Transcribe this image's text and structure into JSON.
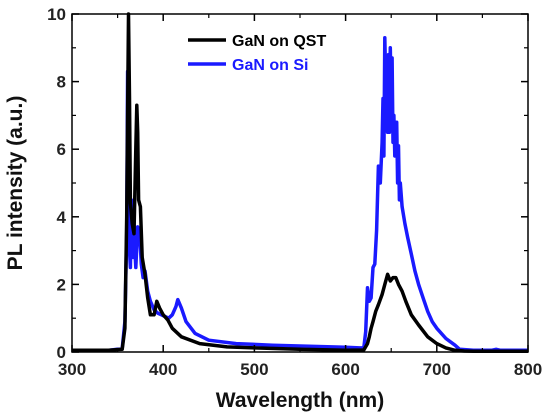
{
  "chart_data": {
    "type": "line",
    "xlabel": "Wavelength (nm)",
    "ylabel": "PL intensity (a.u.)",
    "xlim": [
      300,
      800
    ],
    "ylim": [
      0,
      10
    ],
    "xticks": [
      300,
      400,
      500,
      600,
      700,
      800
    ],
    "yticks": [
      0,
      2,
      4,
      6,
      8,
      10
    ],
    "grid": false,
    "legend_position": "top-center",
    "series": [
      {
        "name": "GaN on QST",
        "color": "#000000",
        "x": [
          300,
          340,
          355,
          358,
          360,
          362,
          363,
          364,
          366,
          368,
          370,
          371,
          372,
          373,
          375,
          377,
          380,
          383,
          386,
          390,
          393,
          396,
          400,
          405,
          410,
          420,
          440,
          470,
          500,
          550,
          600,
          620,
          624,
          626,
          628,
          630,
          633,
          636,
          640,
          643,
          646,
          649,
          652,
          655,
          658,
          662,
          666,
          672,
          680,
          690,
          700,
          710,
          720,
          730,
          740,
          760,
          780,
          800
        ],
        "y": [
          0.05,
          0.05,
          0.08,
          0.7,
          4.0,
          10.0,
          7.5,
          4.4,
          3.8,
          3.5,
          6.0,
          7.3,
          6.5,
          4.5,
          4.3,
          2.8,
          2.3,
          1.6,
          1.1,
          1.1,
          1.5,
          1.3,
          1.1,
          0.95,
          0.7,
          0.45,
          0.25,
          0.15,
          0.12,
          0.08,
          0.05,
          0.06,
          0.25,
          0.45,
          0.7,
          0.9,
          1.2,
          1.4,
          1.7,
          2.0,
          2.3,
          2.1,
          2.2,
          2.2,
          2.0,
          1.8,
          1.5,
          1.1,
          0.8,
          0.45,
          0.25,
          0.12,
          0.05,
          0.03,
          0.02,
          0.02,
          0.02,
          0.02
        ]
      },
      {
        "name": "GaN on Si",
        "color": "#1a1aff",
        "x": [
          300,
          340,
          355,
          358,
          360,
          361,
          362,
          363,
          364,
          365,
          366,
          367,
          368,
          369,
          370,
          372,
          374,
          376,
          378,
          380,
          383,
          386,
          390,
          394,
          398,
          402,
          406,
          410,
          414,
          416,
          420,
          425,
          435,
          450,
          480,
          520,
          560,
          600,
          615,
          620,
          622,
          624,
          626,
          628,
          630,
          632,
          634,
          636,
          638,
          640,
          641,
          642,
          643,
          644,
          645,
          646,
          647,
          648,
          649,
          650,
          651,
          652,
          653,
          654,
          655,
          656,
          657,
          658,
          659,
          660,
          662,
          665,
          668,
          672,
          676,
          680,
          685,
          690,
          695,
          700,
          710,
          720,
          725,
          740,
          760,
          765,
          770,
          800
        ],
        "y": [
          0.05,
          0.05,
          0.1,
          0.9,
          3.5,
          8.3,
          6.0,
          3.0,
          2.5,
          4.5,
          3.5,
          2.8,
          3.8,
          3.0,
          2.5,
          3.7,
          3.6,
          2.6,
          2.2,
          2.4,
          1.8,
          1.5,
          1.25,
          1.15,
          1.1,
          1.05,
          1.0,
          1.1,
          1.35,
          1.55,
          1.3,
          0.9,
          0.55,
          0.35,
          0.25,
          0.2,
          0.17,
          0.14,
          0.12,
          0.12,
          0.6,
          1.9,
          1.5,
          1.6,
          2.5,
          2.6,
          3.6,
          5.5,
          5.0,
          6.2,
          7.5,
          5.8,
          9.3,
          8.0,
          7.4,
          6.5,
          8.8,
          6.5,
          9.0,
          7.5,
          8.7,
          6.2,
          7.0,
          5.8,
          6.5,
          6.8,
          5.0,
          6.1,
          4.5,
          5.0,
          4.3,
          3.8,
          3.4,
          2.9,
          2.4,
          2.0,
          1.6,
          1.2,
          0.9,
          0.7,
          0.4,
          0.2,
          0.08,
          0.05,
          0.05,
          0.08,
          0.05,
          0.05
        ]
      }
    ]
  }
}
